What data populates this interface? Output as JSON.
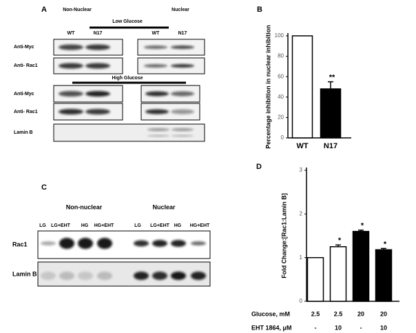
{
  "blots_a": {
    "label": "A",
    "left_heading": "Non-Nuclear",
    "right_heading": "Nuclear",
    "low": "Low Glucose",
    "high": "High Glucose",
    "lanes": [
      "WT",
      "N17",
      "WT",
      "N17"
    ],
    "rows": [
      "Anti-Myc",
      "Anti- Rac1",
      "Anti-Myc",
      "Anti- Rac1",
      "Lamin B"
    ]
  },
  "blots_c": {
    "label": "C",
    "left_heading": "Non-nuclear",
    "right_heading": "Nuclear",
    "lanes": [
      "LG",
      "LG+EHT",
      "HG",
      "HG+EHT",
      "LG",
      "LG+EHT",
      "HG",
      "HG+EHT"
    ],
    "rows": [
      "Rac1",
      "Lamin B"
    ]
  },
  "chart_data": [
    {
      "type": "bar",
      "panel": "B",
      "ylabel": "Percentage inhibition in nuclear inhibition",
      "categories": [
        "WT",
        "N17"
      ],
      "values": [
        100,
        48
      ],
      "errors": [
        0,
        7
      ],
      "colors": [
        "#ffffff",
        "#000000"
      ],
      "annotations": [
        null,
        "**"
      ],
      "ylim": [
        0,
        100
      ],
      "yticks": [
        0,
        20,
        40,
        60,
        80,
        100
      ]
    },
    {
      "type": "bar",
      "panel": "D",
      "ylabel": "Fold Change:[Rac1:Lamin B]",
      "categories": [
        null,
        null,
        null,
        null
      ],
      "values": [
        1,
        1.25,
        1.6,
        1.18
      ],
      "errors": [
        0,
        0.04,
        0.03,
        0.03
      ],
      "colors": [
        "#ffffff",
        "#ffffff",
        "#000000",
        "#000000"
      ],
      "annotations": [
        null,
        "*",
        "*",
        "*"
      ],
      "ylim": [
        0,
        3
      ],
      "yticks": [
        0,
        1,
        2,
        3
      ],
      "row_labels": [
        "Glucose, mM",
        "EHT 1864, μM"
      ],
      "rows": [
        [
          "2.5",
          "2.5",
          "20",
          "20"
        ],
        [
          "-",
          "10",
          "-",
          "10"
        ]
      ]
    }
  ]
}
